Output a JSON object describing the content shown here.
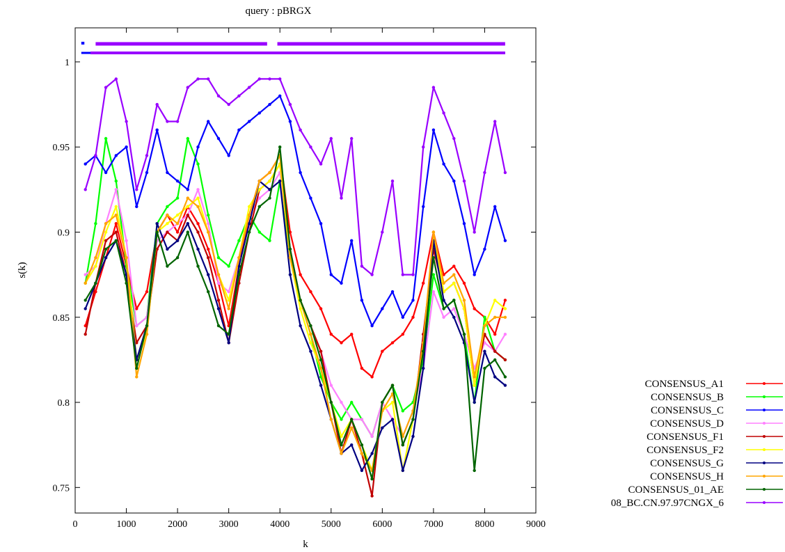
{
  "chart_data": {
    "type": "line",
    "title": "query : pBRGX",
    "xlabel": "k",
    "ylabel": "s(k)",
    "xlim": [
      0,
      9000
    ],
    "ylim": [
      0.735,
      1.02
    ],
    "xticks": [
      0,
      1000,
      2000,
      3000,
      4000,
      5000,
      6000,
      7000,
      8000,
      9000
    ],
    "yticks": [
      0.75,
      0.8,
      0.85,
      0.9,
      0.95,
      1
    ],
    "grid": false,
    "legend_position": "lower-right-outside",
    "x": [
      200,
      400,
      600,
      800,
      1000,
      1200,
      1400,
      1600,
      1800,
      2000,
      2200,
      2400,
      2600,
      2800,
      3000,
      3200,
      3400,
      3600,
      3800,
      4000,
      4200,
      4400,
      4600,
      4800,
      5000,
      5200,
      5400,
      5600,
      5800,
      6000,
      6200,
      6400,
      6600,
      6800,
      7000,
      7200,
      7400,
      7600,
      7800,
      8000,
      8200,
      8400
    ],
    "series": [
      {
        "name": "CONSENSUS_A1",
        "color": "#ff0000",
        "values": [
          0.845,
          0.865,
          0.885,
          0.905,
          0.88,
          0.855,
          0.865,
          0.9,
          0.91,
          0.9,
          0.915,
          0.905,
          0.89,
          0.87,
          0.845,
          0.88,
          0.91,
          0.93,
          0.935,
          0.945,
          0.9,
          0.875,
          0.865,
          0.855,
          0.84,
          0.835,
          0.84,
          0.82,
          0.815,
          0.83,
          0.835,
          0.84,
          0.85,
          0.87,
          0.9,
          0.875,
          0.88,
          0.87,
          0.855,
          0.85,
          0.84,
          0.86
        ]
      },
      {
        "name": "CONSENSUS_B",
        "color": "#00ff00",
        "values": [
          0.87,
          0.905,
          0.955,
          0.93,
          0.88,
          0.845,
          0.85,
          0.905,
          0.915,
          0.92,
          0.955,
          0.94,
          0.91,
          0.885,
          0.88,
          0.895,
          0.91,
          0.9,
          0.895,
          0.93,
          0.885,
          0.86,
          0.84,
          0.815,
          0.8,
          0.79,
          0.8,
          0.79,
          0.78,
          0.8,
          0.81,
          0.795,
          0.8,
          0.825,
          0.875,
          0.855,
          0.86,
          0.84,
          0.8,
          0.85,
          0.83,
          0.825
        ]
      },
      {
        "name": "CONSENSUS_C",
        "color": "#0000ff",
        "values": [
          0.94,
          0.945,
          0.935,
          0.945,
          0.95,
          0.915,
          0.935,
          0.96,
          0.935,
          0.93,
          0.925,
          0.95,
          0.965,
          0.955,
          0.945,
          0.96,
          0.965,
          0.97,
          0.975,
          0.98,
          0.965,
          0.935,
          0.92,
          0.905,
          0.875,
          0.87,
          0.895,
          0.86,
          0.845,
          0.855,
          0.865,
          0.85,
          0.86,
          0.915,
          0.96,
          0.94,
          0.93,
          0.905,
          0.875,
          0.89,
          0.915,
          0.895
        ]
      },
      {
        "name": "CONSENSUS_D",
        "color": "#ff80ff",
        "values": [
          0.875,
          0.88,
          0.905,
          0.925,
          0.895,
          0.845,
          0.85,
          0.895,
          0.9,
          0.905,
          0.91,
          0.925,
          0.905,
          0.87,
          0.865,
          0.885,
          0.91,
          0.92,
          0.925,
          0.935,
          0.89,
          0.86,
          0.845,
          0.83,
          0.81,
          0.8,
          0.79,
          0.79,
          0.78,
          0.8,
          0.79,
          0.78,
          0.795,
          0.82,
          0.865,
          0.85,
          0.855,
          0.84,
          0.82,
          0.835,
          0.83,
          0.84
        ]
      },
      {
        "name": "CONSENSUS_F1",
        "color": "#c00000",
        "values": [
          0.84,
          0.87,
          0.895,
          0.9,
          0.875,
          0.835,
          0.845,
          0.89,
          0.9,
          0.895,
          0.91,
          0.9,
          0.885,
          0.86,
          0.835,
          0.87,
          0.9,
          0.925,
          0.93,
          0.94,
          0.89,
          0.86,
          0.845,
          0.83,
          0.8,
          0.77,
          0.79,
          0.77,
          0.745,
          0.8,
          0.81,
          0.775,
          0.79,
          0.84,
          0.89,
          0.865,
          0.87,
          0.855,
          0.81,
          0.84,
          0.83,
          0.825
        ]
      },
      {
        "name": "CONSENSUS_F2",
        "color": "#ffff00",
        "values": [
          0.87,
          0.88,
          0.9,
          0.915,
          0.885,
          0.825,
          0.84,
          0.9,
          0.905,
          0.91,
          0.915,
          0.92,
          0.9,
          0.875,
          0.86,
          0.885,
          0.915,
          0.925,
          0.93,
          0.94,
          0.885,
          0.855,
          0.835,
          0.82,
          0.8,
          0.78,
          0.79,
          0.775,
          0.76,
          0.795,
          0.8,
          0.76,
          0.79,
          0.83,
          0.9,
          0.865,
          0.87,
          0.855,
          0.81,
          0.845,
          0.86,
          0.855
        ]
      },
      {
        "name": "CONSENSUS_G",
        "color": "#000080",
        "values": [
          0.855,
          0.87,
          0.885,
          0.895,
          0.875,
          0.825,
          0.845,
          0.905,
          0.89,
          0.895,
          0.905,
          0.89,
          0.875,
          0.855,
          0.835,
          0.88,
          0.905,
          0.93,
          0.925,
          0.93,
          0.875,
          0.845,
          0.83,
          0.81,
          0.79,
          0.77,
          0.775,
          0.76,
          0.77,
          0.785,
          0.79,
          0.76,
          0.78,
          0.82,
          0.895,
          0.86,
          0.85,
          0.835,
          0.8,
          0.83,
          0.815,
          0.81
        ]
      },
      {
        "name": "CONSENSUS_H",
        "color": "#ffa500",
        "values": [
          0.87,
          0.885,
          0.905,
          0.91,
          0.885,
          0.815,
          0.84,
          0.9,
          0.91,
          0.905,
          0.92,
          0.915,
          0.9,
          0.875,
          0.855,
          0.885,
          0.91,
          0.93,
          0.935,
          0.945,
          0.885,
          0.86,
          0.84,
          0.82,
          0.79,
          0.77,
          0.785,
          0.77,
          0.76,
          0.795,
          0.805,
          0.78,
          0.795,
          0.835,
          0.9,
          0.87,
          0.875,
          0.86,
          0.815,
          0.845,
          0.85,
          0.85
        ]
      },
      {
        "name": "CONSENSUS_01_AE",
        "color": "#006400",
        "values": [
          0.86,
          0.87,
          0.89,
          0.895,
          0.87,
          0.82,
          0.845,
          0.9,
          0.88,
          0.885,
          0.9,
          0.88,
          0.865,
          0.845,
          0.84,
          0.875,
          0.9,
          0.915,
          0.92,
          0.95,
          0.89,
          0.86,
          0.845,
          0.825,
          0.8,
          0.775,
          0.79,
          0.775,
          0.755,
          0.8,
          0.81,
          0.775,
          0.79,
          0.83,
          0.885,
          0.855,
          0.86,
          0.84,
          0.76,
          0.82,
          0.825,
          0.815
        ]
      },
      {
        "name": "08_BC.CN.97.97CNGX_6",
        "color": "#9900ff",
        "values": [
          0.925,
          0.945,
          0.985,
          0.99,
          0.965,
          0.925,
          0.945,
          0.975,
          0.965,
          0.965,
          0.985,
          0.99,
          0.99,
          0.98,
          0.975,
          0.98,
          0.985,
          0.99,
          0.99,
          0.99,
          0.975,
          0.96,
          0.95,
          0.94,
          0.955,
          0.92,
          0.955,
          0.88,
          0.875,
          0.9,
          0.93,
          0.875,
          0.875,
          0.95,
          0.985,
          0.97,
          0.955,
          0.93,
          0.9,
          0.935,
          0.965,
          0.935
        ]
      }
    ]
  }
}
